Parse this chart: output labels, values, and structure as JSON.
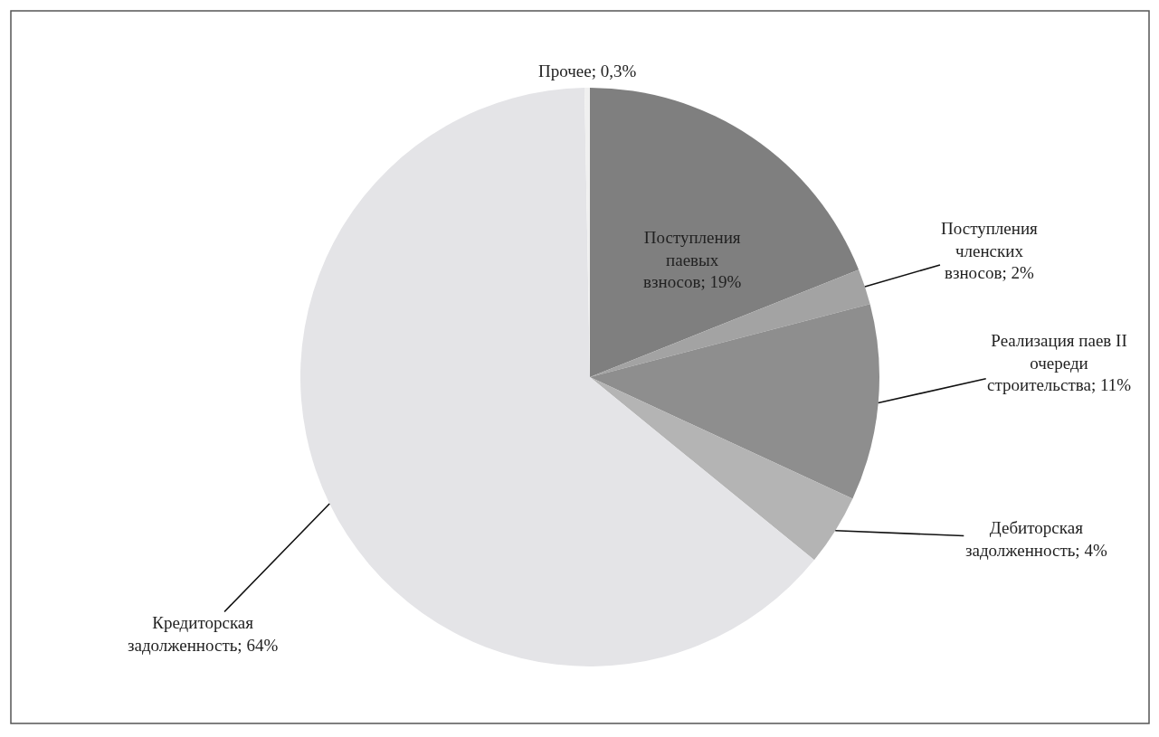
{
  "chart_data": {
    "type": "pie",
    "categories": [
      "Поступления паевых взносов",
      "Поступления членских взносов",
      "Реализация паев II очереди строительства",
      "Дебиторская задолженность",
      "Кредиторская задолженность",
      "Прочее"
    ],
    "values": [
      19,
      2,
      11,
      4,
      64,
      0.3
    ],
    "value_labels": [
      "19%",
      "2%",
      "11%",
      "4%",
      "64%",
      "0,3%"
    ],
    "colors": [
      "#7f7f7f",
      "#a3a3a3",
      "#8e8e8e",
      "#b4b4b4",
      "#e4e4e7",
      "#f0f0f0"
    ]
  }
}
